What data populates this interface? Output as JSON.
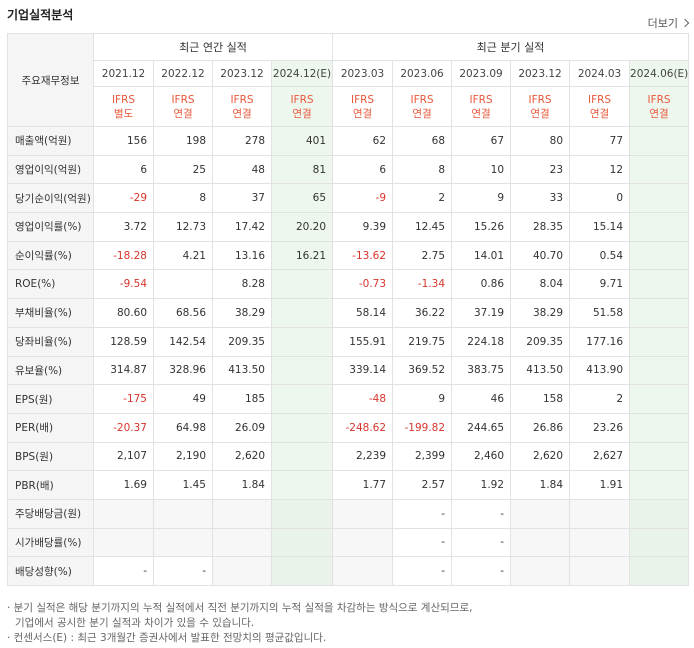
{
  "title": "기업실적분석",
  "more_label": "더보기",
  "corner_label": "주요재무정보",
  "group_annual": "최근 연간 실적",
  "group_quarter": "최근 분기 실적",
  "periods": [
    "2021.12",
    "2022.12",
    "2023.12",
    "2024.12(E)",
    "2023.03",
    "2023.06",
    "2023.09",
    "2023.12",
    "2024.03",
    "2024.06(E)"
  ],
  "standards": [
    [
      "IFRS",
      "별도"
    ],
    [
      "IFRS",
      "연결"
    ],
    [
      "IFRS",
      "연결"
    ],
    [
      "IFRS",
      "연결"
    ],
    [
      "IFRS",
      "연결"
    ],
    [
      "IFRS",
      "연결"
    ],
    [
      "IFRS",
      "연결"
    ],
    [
      "IFRS",
      "연결"
    ],
    [
      "IFRS",
      "연결"
    ],
    [
      "IFRS",
      "연결"
    ]
  ],
  "rows": [
    {
      "label": "매출액(억원)",
      "values": [
        "156",
        "198",
        "278",
        "401",
        "62",
        "68",
        "67",
        "80",
        "77",
        ""
      ]
    },
    {
      "label": "영업이익(억원)",
      "values": [
        "6",
        "25",
        "48",
        "81",
        "6",
        "8",
        "10",
        "23",
        "12",
        ""
      ]
    },
    {
      "label": "당기순이익(억원)",
      "values": [
        "-29",
        "8",
        "37",
        "65",
        "-9",
        "2",
        "9",
        "33",
        "0",
        ""
      ]
    },
    {
      "label": "영업이익률(%)",
      "values": [
        "3.72",
        "12.73",
        "17.42",
        "20.20",
        "9.39",
        "12.45",
        "15.26",
        "28.35",
        "15.14",
        ""
      ]
    },
    {
      "label": "순이익률(%)",
      "values": [
        "-18.28",
        "4.21",
        "13.16",
        "16.21",
        "-13.62",
        "2.75",
        "14.01",
        "40.70",
        "0.54",
        ""
      ]
    },
    {
      "label": "ROE(%)",
      "values": [
        "-9.54",
        "",
        "8.28",
        "",
        "-0.73",
        "-1.34",
        "0.86",
        "8.04",
        "9.71",
        ""
      ]
    },
    {
      "label": "부채비율(%)",
      "values": [
        "80.60",
        "68.56",
        "38.29",
        "",
        "58.14",
        "36.22",
        "37.19",
        "38.29",
        "51.58",
        ""
      ]
    },
    {
      "label": "당좌비율(%)",
      "values": [
        "128.59",
        "142.54",
        "209.35",
        "",
        "155.91",
        "219.75",
        "224.18",
        "209.35",
        "177.16",
        ""
      ]
    },
    {
      "label": "유보율(%)",
      "values": [
        "314.87",
        "328.96",
        "413.50",
        "",
        "339.14",
        "369.52",
        "383.75",
        "413.50",
        "413.90",
        ""
      ]
    },
    {
      "label": "EPS(원)",
      "values": [
        "-175",
        "49",
        "185",
        "",
        "-48",
        "9",
        "46",
        "158",
        "2",
        ""
      ]
    },
    {
      "label": "PER(배)",
      "values": [
        "-20.37",
        "64.98",
        "26.09",
        "",
        "-248.62",
        "-199.82",
        "244.65",
        "26.86",
        "23.26",
        ""
      ]
    },
    {
      "label": "BPS(원)",
      "values": [
        "2,107",
        "2,190",
        "2,620",
        "",
        "2,239",
        "2,399",
        "2,460",
        "2,620",
        "2,627",
        ""
      ]
    },
    {
      "label": "PBR(배)",
      "values": [
        "1.69",
        "1.45",
        "1.84",
        "",
        "1.77",
        "2.57",
        "1.92",
        "1.84",
        "1.91",
        ""
      ]
    },
    {
      "label": "주당배당금(원)",
      "values": [
        "",
        "",
        "",
        "",
        "",
        "-",
        "-",
        "",
        "",
        ""
      ]
    },
    {
      "label": "시가배당률(%)",
      "values": [
        "",
        "",
        "",
        "",
        "",
        "-",
        "-",
        "",
        "",
        ""
      ]
    },
    {
      "label": "배당성향(%)",
      "values": [
        "-",
        "-",
        "",
        "",
        "",
        "-",
        "-",
        "",
        "",
        ""
      ]
    }
  ],
  "notes": [
    "· 분기 실적은 해당 분기까지의 누적 실적에서 직전 분기까지의 누적 실적을 차감하는 방식으로 계산되므로,",
    "기업에서 공시한 분기 실적과 차이가 있을 수 있습니다.",
    "· 컨센서스(E) : 최근 3개월간 증권사에서 발표한 전망치의 평균값입니다."
  ],
  "colors": {
    "negative": "#d8342b",
    "standard": "#e8583a",
    "estimate_bg": "#eef7ee",
    "label_bg": "#f5f5f5"
  }
}
